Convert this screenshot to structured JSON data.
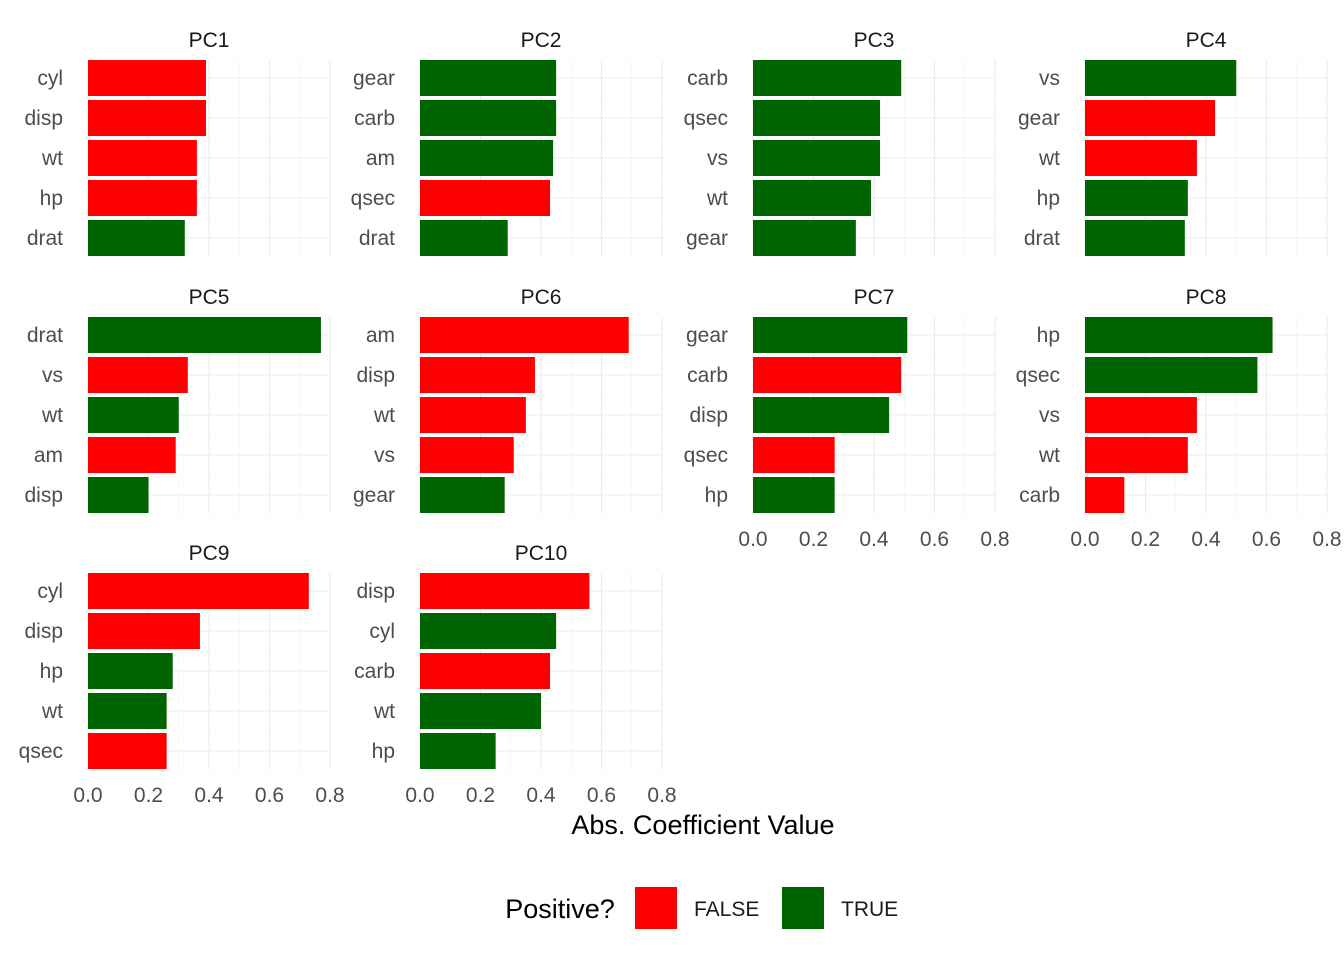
{
  "chart_data": {
    "type": "bar",
    "orientation": "horizontal",
    "facet_layout": "4 columns, 3 rows",
    "xlabel": "Abs. Coefficient Value",
    "xlim": [
      0,
      0.8
    ],
    "x_ticks": [
      "0.0",
      "0.2",
      "0.4",
      "0.6",
      "0.8"
    ],
    "grid": true,
    "legend": {
      "title": "Positive?",
      "position": "bottom",
      "entries": [
        {
          "label": "FALSE",
          "color": "#ff0000"
        },
        {
          "label": "TRUE",
          "color": "#006400"
        }
      ]
    },
    "panels": [
      {
        "title": "PC1",
        "categories": [
          "cyl",
          "disp",
          "wt",
          "hp",
          "drat"
        ],
        "values": [
          0.39,
          0.39,
          0.36,
          0.36,
          0.32
        ],
        "positive": [
          false,
          false,
          false,
          false,
          true
        ]
      },
      {
        "title": "PC2",
        "categories": [
          "gear",
          "carb",
          "am",
          "qsec",
          "drat"
        ],
        "values": [
          0.45,
          0.45,
          0.44,
          0.43,
          0.29
        ],
        "positive": [
          true,
          true,
          true,
          false,
          true
        ]
      },
      {
        "title": "PC3",
        "categories": [
          "carb",
          "qsec",
          "vs",
          "wt",
          "gear"
        ],
        "values": [
          0.49,
          0.42,
          0.42,
          0.39,
          0.34
        ],
        "positive": [
          true,
          true,
          true,
          true,
          true
        ]
      },
      {
        "title": "PC4",
        "categories": [
          "vs",
          "gear",
          "wt",
          "hp",
          "drat"
        ],
        "values": [
          0.5,
          0.43,
          0.37,
          0.34,
          0.33
        ],
        "positive": [
          true,
          false,
          false,
          true,
          true
        ]
      },
      {
        "title": "PC5",
        "categories": [
          "drat",
          "vs",
          "wt",
          "am",
          "disp"
        ],
        "values": [
          0.77,
          0.33,
          0.3,
          0.29,
          0.2
        ],
        "positive": [
          true,
          false,
          true,
          false,
          true
        ]
      },
      {
        "title": "PC6",
        "categories": [
          "am",
          "disp",
          "wt",
          "vs",
          "gear"
        ],
        "values": [
          0.69,
          0.38,
          0.35,
          0.31,
          0.28
        ],
        "positive": [
          false,
          false,
          false,
          false,
          true
        ]
      },
      {
        "title": "PC7",
        "categories": [
          "gear",
          "carb",
          "disp",
          "qsec",
          "hp"
        ],
        "values": [
          0.51,
          0.49,
          0.45,
          0.27,
          0.27
        ],
        "positive": [
          true,
          false,
          true,
          false,
          true
        ]
      },
      {
        "title": "PC8",
        "categories": [
          "hp",
          "qsec",
          "vs",
          "wt",
          "carb"
        ],
        "values": [
          0.62,
          0.57,
          0.37,
          0.34,
          0.13
        ],
        "positive": [
          true,
          true,
          false,
          false,
          false
        ]
      },
      {
        "title": "PC9",
        "categories": [
          "cyl",
          "disp",
          "hp",
          "wt",
          "qsec"
        ],
        "values": [
          0.73,
          0.37,
          0.28,
          0.26,
          0.26
        ],
        "positive": [
          false,
          false,
          true,
          true,
          false
        ]
      },
      {
        "title": "PC10",
        "categories": [
          "disp",
          "cyl",
          "carb",
          "wt",
          "hp"
        ],
        "values": [
          0.56,
          0.45,
          0.43,
          0.4,
          0.25
        ],
        "positive": [
          false,
          true,
          false,
          true,
          true
        ]
      }
    ]
  }
}
